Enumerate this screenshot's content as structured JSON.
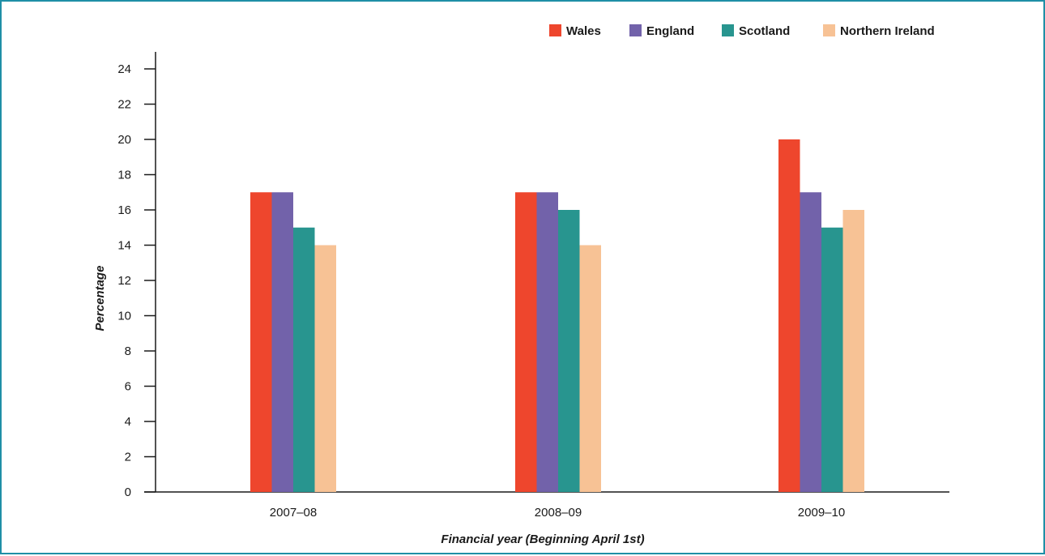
{
  "chart_data": {
    "type": "bar",
    "categories": [
      "2007–08",
      "2008–09",
      "2009–10"
    ],
    "series": [
      {
        "name": "Wales",
        "values": [
          17,
          17,
          20
        ],
        "color": "#ee462d"
      },
      {
        "name": "England",
        "values": [
          17,
          17,
          17
        ],
        "color": "#7262aa"
      },
      {
        "name": "Scotland",
        "values": [
          15,
          16,
          15
        ],
        "color": "#28958f"
      },
      {
        "name": "Northern Ireland",
        "values": [
          14,
          14,
          16
        ],
        "color": "#f7c295"
      }
    ],
    "xlabel": "Financial year (Beginning April 1st)",
    "ylabel": "Percentage",
    "ylim": [
      0,
      24
    ],
    "yticks": [
      0,
      2,
      4,
      6,
      8,
      10,
      12,
      14,
      16,
      18,
      20,
      22,
      24
    ],
    "legend_position": "top-right",
    "grid": false
  }
}
